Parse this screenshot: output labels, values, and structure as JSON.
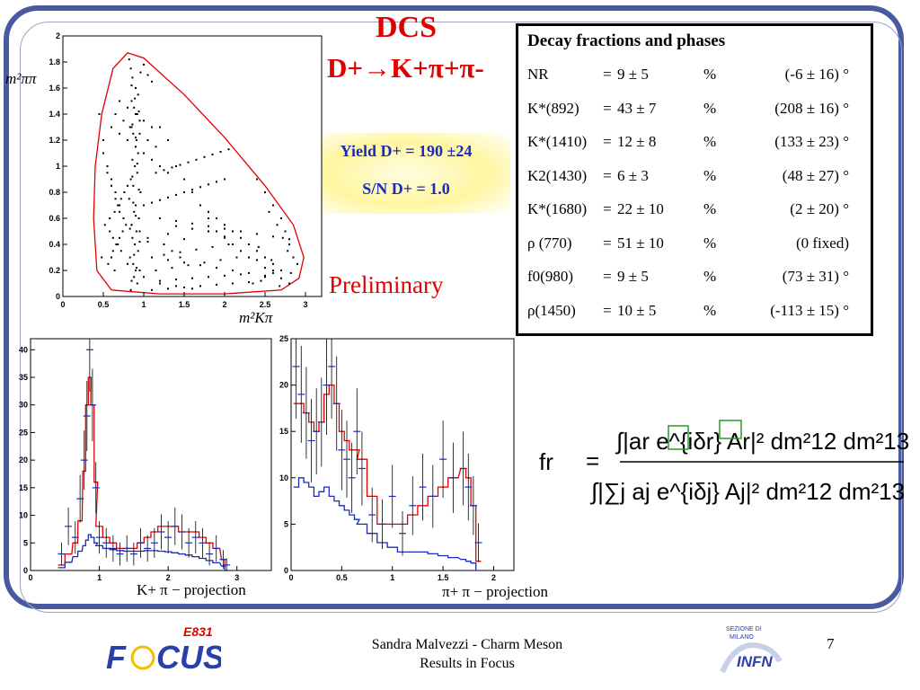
{
  "slide": {
    "title_line1": "DCS",
    "title_line2": "D+→K+π+π-",
    "yield_line1": "Yield D+ = 190 ±24",
    "yield_line2": "S/N D+ = 1.0",
    "preliminary": "Preliminary",
    "footer_line1": "Sandra Malvezzi - Charm Meson",
    "footer_line2": "Results  in Focus",
    "page_number": "7",
    "logos": {
      "left": "E831 FOCUS",
      "right": "INFN"
    },
    "colors": {
      "frame": "#4a5aa0",
      "title": "#e00000",
      "yield_text": "#1a2bb8"
    }
  },
  "table": {
    "header": "Decay fractions and phases",
    "rows": [
      {
        "name": "NR",
        "eq": "=",
        "fraction": "9 ± 5",
        "unit": "%",
        "phase": "(-6 ± 16) °"
      },
      {
        "name": "K*(892)",
        "eq": "=",
        "fraction": "43 ± 7",
        "unit": "%",
        "phase": "(208 ± 16) °"
      },
      {
        "name": "K*(1410)",
        "eq": "=",
        "fraction": "12 ± 8",
        "unit": "%",
        "phase": "(133 ± 23) °"
      },
      {
        "name": "K2(1430)",
        "eq": "=",
        "fraction": "6 ± 3",
        "unit": "%",
        "phase": "(48 ± 27) °"
      },
      {
        "name": "K*(1680)",
        "eq": "=",
        "fraction": "22 ± 10",
        "unit": "%",
        "phase": "(2 ± 20) °"
      },
      {
        "name": "ρ (770)",
        "eq": "=",
        "fraction": "51 ± 10",
        "unit": "%",
        "phase": "(0 fixed)"
      },
      {
        "name": "f0(980)",
        "eq": "=",
        "fraction": "9 ± 5",
        "unit": "%",
        "phase": "(73 ± 31) °"
      },
      {
        "name": "ρ(1450)",
        "eq": "=",
        "fraction": "10 ± 5",
        "unit": "%",
        "phase": "(-113 ± 15) °"
      }
    ]
  },
  "formula": {
    "lhs": "fr",
    "eq": "=",
    "numerator": "∫|ar e^{iδr} Ar|² dm²12 dm²13",
    "denominator": "∫|∑j aj e^{iδj} Aj|² dm²12 dm²13"
  },
  "dalitz": {
    "ylabel": "m²ππ",
    "xlabel": "m²Kπ",
    "xticks": [
      "0",
      "0.5",
      "1",
      "1.5",
      "2",
      "2.5",
      "3"
    ],
    "yticks": [
      "0",
      "0.2",
      "0.4",
      "0.6",
      "0.8",
      "1",
      "1.2",
      "1.4",
      "1.6",
      "1.8",
      "2"
    ]
  },
  "projections": {
    "left_label": "K+ π − projection",
    "right_label": "π+ π − projection"
  },
  "chart_data": [
    {
      "type": "scatter",
      "title": "",
      "xlabel": "m²Kπ",
      "ylabel": "m²ππ",
      "xlim": [
        0,
        3.2
      ],
      "ylim": [
        0,
        2
      ],
      "grid": false,
      "boundary": "red Dalitz-plot kinematic boundary",
      "points_note": "about 300 events spread inside the kinematic boundary",
      "x": [
        0.82,
        0.84,
        0.86,
        0.9,
        0.93,
        0.85,
        0.88,
        0.92,
        0.95,
        0.83,
        0.87,
        0.91,
        0.96,
        0.85,
        0.89,
        0.94,
        0.86,
        0.9,
        0.84,
        0.92,
        0.88,
        0.95,
        0.87,
        0.83,
        0.93,
        0.89,
        0.86,
        0.91,
        0.85,
        0.94,
        0.88,
        0.9,
        0.82,
        0.96,
        0.87,
        0.84,
        0.92,
        0.89,
        0.86,
        0.93,
        0.85,
        0.91,
        0.88,
        0.95,
        0.83,
        0.9,
        0.87,
        0.94,
        0.86,
        0.92,
        1.0,
        1.05,
        1.1,
        1.2,
        1.3,
        1.4,
        1.5,
        1.6,
        1.7,
        1.8,
        1.9,
        2.0,
        2.1,
        2.2,
        2.3,
        2.4,
        2.5,
        2.6,
        2.7,
        2.8,
        0.45,
        0.5,
        0.55,
        0.6,
        0.65,
        0.7,
        0.75,
        0.5,
        0.55,
        0.6,
        0.65,
        0.7,
        0.52,
        0.58,
        0.62,
        0.68,
        0.72,
        0.48,
        0.56,
        0.64,
        2.4,
        2.5,
        2.6,
        2.7,
        2.75,
        2.8,
        2.85,
        2.9,
        2.55,
        2.65,
        2.72,
        2.78,
        2.6,
        2.5,
        2.45,
        2.35,
        2.68,
        2.82,
        2.58,
        2.42,
        1.1,
        1.3,
        1.5,
        1.7,
        1.9,
        2.1,
        2.3,
        1.2,
        1.4,
        1.6,
        1.8,
        2.0,
        2.2,
        1.15,
        1.35,
        1.55,
        1.75,
        1.95,
        2.15,
        1.25,
        1.45,
        1.65,
        1.85,
        2.05,
        1.05,
        1.5,
        2.0,
        1.3,
        1.8,
        1.6,
        1.4,
        1.0,
        1.1,
        1.2,
        1.3,
        1.4,
        1.5,
        1.6,
        1.7,
        1.8,
        1.9,
        2.0,
        1.15,
        1.25,
        1.35,
        1.45,
        1.55,
        1.65,
        1.75,
        1.85,
        1.95,
        2.05,
        0.6,
        0.7,
        0.8,
        0.9,
        1.0,
        1.1,
        1.2,
        1.3,
        0.65,
        0.75,
        0.85,
        0.95,
        1.05,
        1.15,
        0.7,
        0.8,
        0.9,
        1.0,
        1.1,
        0.75,
        0.85,
        0.95,
        1.05,
        1.25,
        1.35,
        1.45,
        0.8,
        0.9,
        1.0,
        1.2,
        1.4,
        1.6,
        1.1,
        1.3,
        1.5,
        1.7,
        1.9,
        2.1,
        2.3,
        2.5,
        1.2,
        1.4,
        1.6,
        1.8,
        2.0,
        2.2,
        2.4,
        2.6,
        2.8,
        2.7,
        2.6,
        2.5,
        2.4,
        2.3,
        2.2,
        2.1,
        2.0,
        1.9,
        1.8,
        1.7,
        0.6,
        0.62,
        0.66,
        0.7,
        0.74,
        0.78,
        0.58,
        0.64,
        0.68,
        0.72,
        0.76,
        0.8
      ],
      "y": [
        1.82,
        1.75,
        1.68,
        1.6,
        1.55,
        1.5,
        1.45,
        1.4,
        1.35,
        1.3,
        1.25,
        1.2,
        1.72,
        1.62,
        1.52,
        1.42,
        1.32,
        1.22,
        0.05,
        0.1,
        0.15,
        0.2,
        0.25,
        0.3,
        0.35,
        0.4,
        0.45,
        0.5,
        0.55,
        0.6,
        0.65,
        0.7,
        0.75,
        0.8,
        0.85,
        0.9,
        0.95,
        1.0,
        1.05,
        1.1,
        0.12,
        0.22,
        0.32,
        0.42,
        0.52,
        0.62,
        0.72,
        0.82,
        0.92,
        1.02,
        1.78,
        1.7,
        1.65,
        1.3,
        1.2,
        1.0,
        0.9,
        0.8,
        0.7,
        0.6,
        0.5,
        0.45,
        0.4,
        0.35,
        0.3,
        0.28,
        0.22,
        0.18,
        0.14,
        0.1,
        1.4,
        1.2,
        1.0,
        0.9,
        0.8,
        0.7,
        0.6,
        1.1,
        0.95,
        0.85,
        0.75,
        0.65,
        0.55,
        0.5,
        0.45,
        0.4,
        0.35,
        0.3,
        0.25,
        0.2,
        0.9,
        0.8,
        0.7,
        0.6,
        0.5,
        0.4,
        0.3,
        0.25,
        0.65,
        0.55,
        0.45,
        0.35,
        0.2,
        0.15,
        0.12,
        0.1,
        0.08,
        0.18,
        0.28,
        0.38,
        0.05,
        0.06,
        0.07,
        0.08,
        0.09,
        0.1,
        0.11,
        0.12,
        0.13,
        0.14,
        0.15,
        0.16,
        0.17,
        0.2,
        0.22,
        0.24,
        0.26,
        0.28,
        0.3,
        0.32,
        0.34,
        0.36,
        0.38,
        0.4,
        0.42,
        0.44,
        0.46,
        0.48,
        0.5,
        0.52,
        0.54,
        0.7,
        0.72,
        0.74,
        0.76,
        0.78,
        0.8,
        0.82,
        0.84,
        0.86,
        0.88,
        0.9,
        0.95,
        0.97,
        0.99,
        1.01,
        1.03,
        1.05,
        1.07,
        1.09,
        1.11,
        1.13,
        1.3,
        1.25,
        1.2,
        1.15,
        1.1,
        1.05,
        1.0,
        0.95,
        1.4,
        1.35,
        1.3,
        1.25,
        1.2,
        1.15,
        1.5,
        1.45,
        1.4,
        1.35,
        1.3,
        0.6,
        0.55,
        0.5,
        0.45,
        0.4,
        0.35,
        0.3,
        0.25,
        0.2,
        0.15,
        0.1,
        0.08,
        0.06,
        0.3,
        0.28,
        0.26,
        0.24,
        0.22,
        0.2,
        0.18,
        0.16,
        0.6,
        0.58,
        0.56,
        0.54,
        0.52,
        0.5,
        0.48,
        0.46,
        0.44,
        0.2,
        0.25,
        0.3,
        0.35,
        0.4,
        0.45,
        0.5,
        0.55,
        0.6,
        0.65,
        0.7,
        0.3,
        0.35,
        0.4,
        0.45,
        0.5,
        0.55,
        0.6,
        0.65,
        0.7,
        0.75,
        0.8,
        0.85
      ],
      "xticks": [
        "0",
        "0.5",
        "1",
        "1.5",
        "2",
        "2.5",
        "3"
      ],
      "yticks": [
        "0",
        "0.2",
        "0.4",
        "0.6",
        "0.8",
        "1",
        "1.2",
        "1.4",
        "1.6",
        "1.8",
        "2"
      ]
    },
    {
      "type": "line",
      "title": "",
      "xlabel": "K+ π − projection",
      "xlim": [
        0,
        3.5
      ],
      "ylim": [
        0,
        42
      ],
      "grid": false,
      "xticks": [
        "0",
        "1",
        "2",
        "3"
      ],
      "yticks": [
        "0",
        "5",
        "10",
        "15",
        "20",
        "25",
        "30",
        "35",
        "40"
      ],
      "x": [
        0.45,
        0.55,
        0.65,
        0.72,
        0.78,
        0.82,
        0.86,
        0.9,
        0.95,
        1.0,
        1.1,
        1.2,
        1.3,
        1.4,
        1.5,
        1.6,
        1.7,
        1.8,
        1.9,
        2.0,
        2.1,
        2.2,
        2.3,
        2.4,
        2.5,
        2.6,
        2.7,
        2.8,
        2.85
      ],
      "series": [
        {
          "name": "",
          "color": "#1a2bb8",
          "style": "data points with error bars",
          "values": [
            3,
            8,
            6,
            13,
            20,
            28,
            40,
            30,
            15,
            6,
            5,
            4,
            3,
            4,
            3,
            5,
            4,
            5,
            7,
            6,
            8,
            7,
            5,
            6,
            5,
            3,
            4,
            2,
            1
          ]
        },
        {
          "name": "",
          "color": "#e00000",
          "style": "fit",
          "values": [
            1,
            3,
            5,
            9,
            18,
            30,
            35,
            30,
            16,
            8,
            6,
            5,
            4,
            4,
            4,
            5,
            6,
            7,
            8,
            8,
            8,
            7,
            7,
            7,
            6,
            5,
            4,
            2,
            0
          ]
        },
        {
          "name": "",
          "color": "#1a2bb8",
          "style": "background",
          "values": [
            0.5,
            1.5,
            2.5,
            3.5,
            4.5,
            5.5,
            6.5,
            6,
            5,
            4.5,
            4,
            3.8,
            3.6,
            3.5,
            3.5,
            3.5,
            3.6,
            3.6,
            3.5,
            3.4,
            3.2,
            3,
            2.8,
            2.5,
            2.2,
            1.8,
            1.4,
            0.8,
            0
          ]
        }
      ]
    },
    {
      "type": "line",
      "title": "",
      "xlabel": "π+ π − projection",
      "xlim": [
        0,
        2.2
      ],
      "ylim": [
        0,
        25
      ],
      "grid": false,
      "xticks": [
        "0",
        "0.5",
        "1",
        "1.5",
        "2"
      ],
      "yticks": [
        "0",
        "5",
        "10",
        "15",
        "20",
        "25"
      ],
      "x": [
        0.05,
        0.1,
        0.15,
        0.2,
        0.25,
        0.3,
        0.35,
        0.4,
        0.45,
        0.5,
        0.55,
        0.6,
        0.65,
        0.7,
        0.8,
        0.9,
        1.0,
        1.1,
        1.2,
        1.3,
        1.4,
        1.5,
        1.6,
        1.7,
        1.75,
        1.8,
        1.85
      ],
      "series": [
        {
          "name": "",
          "color": "#1a2bb8",
          "style": "data points with error bars",
          "values": [
            22,
            19,
            17,
            14,
            15,
            16,
            20,
            22,
            18,
            13,
            12,
            10,
            15,
            11,
            6,
            5,
            8,
            4,
            7,
            9,
            8,
            12,
            10,
            11,
            9,
            7,
            3
          ]
        },
        {
          "name": "",
          "color": "#e00000",
          "style": "fit",
          "values": [
            18,
            18,
            17,
            16,
            15,
            16,
            19,
            20,
            18,
            15,
            14,
            13,
            13,
            12,
            8,
            5,
            5,
            5,
            6,
            7,
            8,
            9,
            10,
            11,
            10,
            7,
            1
          ]
        },
        {
          "name": "",
          "color": "#1a2bb8",
          "style": "background",
          "values": [
            9,
            10,
            9.5,
            9,
            8,
            8.5,
            9,
            8,
            7.5,
            7,
            6.5,
            6,
            5.5,
            5,
            4,
            3,
            2.5,
            2,
            2,
            2,
            1.8,
            1.6,
            1.4,
            1.2,
            1,
            0.8,
            0
          ]
        }
      ]
    }
  ]
}
